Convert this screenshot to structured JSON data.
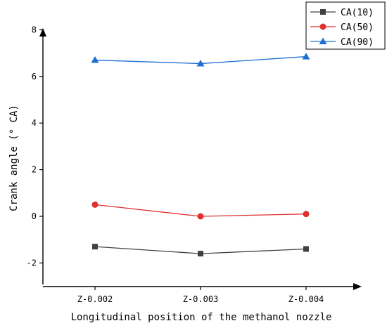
{
  "chart_data": {
    "type": "line",
    "categories": [
      "Z-0.002",
      "Z-0.003",
      "Z-0.004"
    ],
    "series": [
      {
        "name": "CA(10)",
        "values": [
          -1.3,
          -1.6,
          -1.4
        ],
        "color": "#404040",
        "marker": "square"
      },
      {
        "name": "CA(50)",
        "values": [
          0.5,
          0.0,
          0.1
        ],
        "color": "#e03030",
        "marker": "circle"
      },
      {
        "name": "CA(90)",
        "values": [
          6.7,
          6.55,
          6.85
        ],
        "color": "#1f6fd6",
        "marker": "triangle"
      }
    ],
    "xlabel": "Longitudinal position of the methanol nozzle",
    "ylabel": "Crank angle (° CA)",
    "ylim": [
      -3,
      8
    ],
    "yticks": [
      -2,
      0,
      2,
      4,
      6,
      8
    ],
    "ytick_labels": [
      "-2",
      "0",
      "2",
      "4",
      "6",
      "8"
    ],
    "grid": false,
    "legend_position": "top-right"
  }
}
